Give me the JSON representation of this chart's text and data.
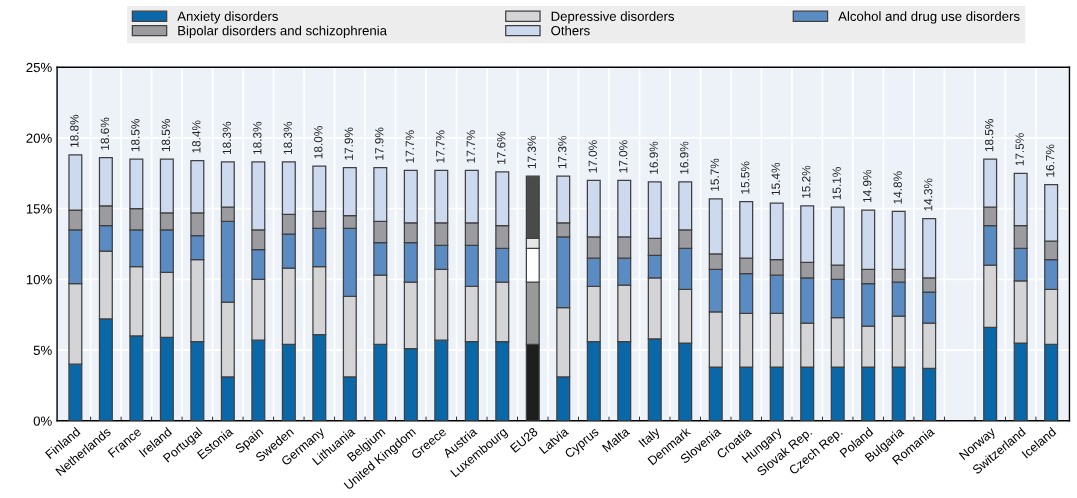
{
  "chart_data": {
    "type": "bar",
    "stacked": true,
    "categories": [
      "Finland",
      "Netherlands",
      "France",
      "Ireland",
      "Portugal",
      "Estonia",
      "Spain",
      "Sweden",
      "Germany",
      "Lithuania",
      "Belgium",
      "United Kingdom",
      "Greece",
      "Austria",
      "Luxembourg",
      "EU28",
      "Latvia",
      "Cyprus",
      "Malta",
      "Italy",
      "Denmark",
      "Slovenia",
      "Croatia",
      "Hungary",
      "Slovak Rep.",
      "Czech Rep.",
      "Poland",
      "Bulgaria",
      "Romania",
      null,
      "Norway",
      "Switzerland",
      "Iceland"
    ],
    "series": [
      {
        "name": "Anxiety disorders",
        "color": "#0a67a8",
        "colors": [
          "#0a67a8",
          "#0a67a8",
          "#0a67a8",
          "#0a67a8",
          "#0a67a8",
          "#0a67a8",
          "#0a67a8",
          "#0a67a8",
          "#0a67a8",
          "#0a67a8",
          "#0a67a8",
          "#0a67a8",
          "#0a67a8",
          "#0a67a8",
          "#0a67a8",
          "#1e1e1e",
          "#0a67a8",
          "#0a67a8",
          "#0a67a8",
          "#0a67a8",
          "#0a67a8",
          "#0a67a8",
          "#0a67a8",
          "#0a67a8",
          "#0a67a8",
          "#0a67a8",
          "#0a67a8",
          "#0a67a8",
          "#0a67a8",
          "#0a67a8",
          "#0a67a8",
          "#0a67a8",
          "#0a67a8"
        ],
        "values": [
          4.0,
          7.2,
          6.0,
          5.9,
          5.6,
          3.1,
          5.7,
          5.4,
          6.1,
          3.1,
          5.4,
          5.1,
          5.7,
          5.6,
          5.6,
          5.4,
          3.1,
          5.6,
          5.6,
          5.8,
          5.5,
          3.8,
          3.8,
          3.8,
          3.8,
          3.8,
          3.8,
          3.8,
          3.7,
          null,
          6.6,
          5.5,
          5.4
        ]
      },
      {
        "name": "Depressive disorders",
        "color": "#d4d4d6",
        "colors": [
          "#d4d4d6",
          "#d4d4d6",
          "#d4d4d6",
          "#d4d4d6",
          "#d4d4d6",
          "#d4d4d6",
          "#d4d4d6",
          "#d4d4d6",
          "#d4d4d6",
          "#d4d4d6",
          "#d4d4d6",
          "#d4d4d6",
          "#d4d4d6",
          "#d4d4d6",
          "#d4d4d6",
          "#999999",
          "#d4d4d6",
          "#d4d4d6",
          "#d4d4d6",
          "#d4d4d6",
          "#d4d4d6",
          "#d4d4d6",
          "#d4d4d6",
          "#d4d4d6",
          "#d4d4d6",
          "#d4d4d6",
          "#d4d4d6",
          "#d4d4d6",
          "#d4d4d6",
          "#d4d4d6",
          "#d4d4d6",
          "#d4d4d6",
          "#d4d4d6"
        ],
        "values": [
          5.7,
          4.8,
          4.9,
          4.6,
          5.8,
          5.3,
          4.3,
          5.4,
          4.8,
          5.7,
          4.9,
          4.7,
          5.0,
          3.9,
          4.2,
          4.4,
          4.9,
          3.9,
          4.0,
          4.3,
          3.8,
          3.9,
          3.8,
          3.8,
          3.1,
          3.5,
          2.9,
          3.6,
          3.2,
          null,
          4.4,
          4.4,
          3.9
        ]
      },
      {
        "name": "Alcohol and drug use disorders",
        "color": "#5b8bc3",
        "colors": [
          "#5b8bc3",
          "#5b8bc3",
          "#5b8bc3",
          "#5b8bc3",
          "#5b8bc3",
          "#5b8bc3",
          "#5b8bc3",
          "#5b8bc3",
          "#5b8bc3",
          "#5b8bc3",
          "#5b8bc3",
          "#5b8bc3",
          "#5b8bc3",
          "#5b8bc3",
          "#5b8bc3",
          "#ffffff",
          "#5b8bc3",
          "#5b8bc3",
          "#5b8bc3",
          "#5b8bc3",
          "#5b8bc3",
          "#5b8bc3",
          "#5b8bc3",
          "#5b8bc3",
          "#5b8bc3",
          "#5b8bc3",
          "#5b8bc3",
          "#5b8bc3",
          "#5b8bc3",
          "#5b8bc3",
          "#5b8bc3",
          "#5b8bc3",
          "#5b8bc3"
        ],
        "values": [
          3.8,
          1.8,
          2.6,
          3.0,
          1.7,
          5.7,
          2.1,
          2.4,
          2.7,
          4.8,
          2.3,
          2.8,
          1.7,
          2.9,
          2.4,
          2.4,
          5.0,
          2.0,
          1.9,
          1.6,
          2.9,
          3.0,
          2.8,
          2.7,
          3.2,
          2.7,
          3.0,
          2.4,
          2.2,
          null,
          2.8,
          2.3,
          2.1
        ]
      },
      {
        "name": "Bipolar disorders and schizophrenia",
        "color": "#9c9ca0",
        "colors": [
          "#9c9ca0",
          "#9c9ca0",
          "#9c9ca0",
          "#9c9ca0",
          "#9c9ca0",
          "#9c9ca0",
          "#9c9ca0",
          "#9c9ca0",
          "#9c9ca0",
          "#9c9ca0",
          "#9c9ca0",
          "#9c9ca0",
          "#9c9ca0",
          "#9c9ca0",
          "#9c9ca0",
          "#e6e6e6",
          "#9c9ca0",
          "#9c9ca0",
          "#9c9ca0",
          "#9c9ca0",
          "#9c9ca0",
          "#9c9ca0",
          "#9c9ca0",
          "#9c9ca0",
          "#9c9ca0",
          "#9c9ca0",
          "#9c9ca0",
          "#9c9ca0",
          "#9c9ca0",
          "#9c9ca0",
          "#9c9ca0",
          "#9c9ca0",
          "#9c9ca0"
        ],
        "values": [
          1.4,
          1.4,
          1.5,
          1.2,
          1.6,
          1.0,
          1.4,
          1.4,
          1.2,
          0.9,
          1.5,
          1.4,
          1.6,
          1.6,
          1.6,
          0.7,
          1.0,
          1.5,
          1.5,
          1.2,
          1.3,
          1.1,
          1.1,
          1.1,
          1.1,
          1.0,
          1.0,
          0.9,
          1.0,
          null,
          1.3,
          1.6,
          1.3
        ]
      },
      {
        "name": "Others",
        "color": "#cdd9ee",
        "colors": [
          "#cdd9ee",
          "#cdd9ee",
          "#cdd9ee",
          "#cdd9ee",
          "#cdd9ee",
          "#cdd9ee",
          "#cdd9ee",
          "#cdd9ee",
          "#cdd9ee",
          "#cdd9ee",
          "#cdd9ee",
          "#cdd9ee",
          "#cdd9ee",
          "#cdd9ee",
          "#cdd9ee",
          "#4a4a4a",
          "#cdd9ee",
          "#cdd9ee",
          "#cdd9ee",
          "#cdd9ee",
          "#cdd9ee",
          "#cdd9ee",
          "#cdd9ee",
          "#cdd9ee",
          "#cdd9ee",
          "#cdd9ee",
          "#cdd9ee",
          "#cdd9ee",
          "#cdd9ee",
          "#cdd9ee",
          "#cdd9ee",
          "#cdd9ee",
          "#cdd9ee"
        ],
        "values": [
          3.9,
          3.4,
          3.5,
          3.8,
          3.7,
          3.2,
          4.8,
          3.7,
          3.2,
          3.4,
          3.8,
          3.7,
          3.7,
          3.7,
          3.8,
          4.4,
          3.3,
          4.0,
          4.0,
          4.0,
          3.4,
          3.9,
          4.0,
          4.0,
          4.0,
          4.1,
          4.2,
          4.1,
          4.2,
          null,
          3.4,
          3.7,
          4.0
        ]
      }
    ],
    "totals": [
      "18.8%",
      "18.6%",
      "18.5%",
      "18.5%",
      "18.4%",
      "18.3%",
      "18.3%",
      "18.3%",
      "18.0%",
      "17.9%",
      "17.9%",
      "17.7%",
      "17.7%",
      "17.7%",
      "17.6%",
      "17.3%",
      "17.3%",
      "17.0%",
      "17.0%",
      "16.9%",
      "16.9%",
      "15.7%",
      "15.5%",
      "15.4%",
      "15.2%",
      "15.1%",
      "14.9%",
      "14.8%",
      "14.3%",
      null,
      "18.5%",
      "17.5%",
      "16.7%"
    ],
    "ylim": [
      0,
      25
    ],
    "yticks": [
      {
        "value": 0,
        "label": "0%"
      },
      {
        "value": 5,
        "label": "5%"
      },
      {
        "value": 10,
        "label": "10%"
      },
      {
        "value": 15,
        "label": "15%"
      },
      {
        "value": 20,
        "label": "20%"
      },
      {
        "value": 25,
        "label": "25%"
      }
    ],
    "grid": true,
    "legend": "top"
  }
}
